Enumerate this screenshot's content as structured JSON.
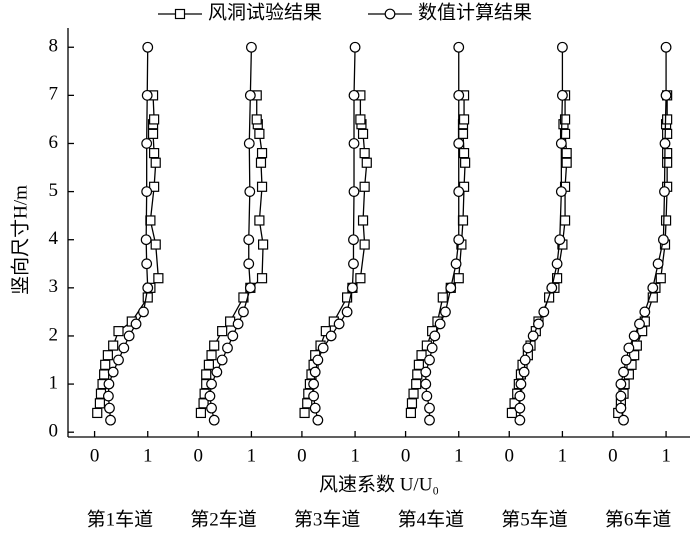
{
  "chart_data": {
    "type": "line",
    "ylabel": "竖向尺寸H/m",
    "xlabel": "风速系数 U/U₀",
    "ylim": [
      -0.1,
      8.4
    ],
    "yticks": [
      0,
      1,
      2,
      3,
      4,
      5,
      6,
      7,
      8
    ],
    "color": "#000000",
    "series": [
      {
        "name": "风洞试验结果",
        "marker": "square"
      },
      {
        "name": "数值计算结果",
        "marker": "circle"
      }
    ],
    "panels": [
      {
        "title": "第1车道",
        "xlim": [
          -0.5,
          1.45
        ],
        "xticks": [
          0,
          1
        ],
        "series": [
          {
            "x": [
              0.05,
              0.1,
              0.12,
              0.15,
              0.18,
              0.2,
              0.25,
              0.35,
              0.45,
              0.7,
              1.0,
              1.05,
              1.2,
              1.15,
              1.05,
              1.12,
              1.15,
              1.12,
              1.1,
              1.1,
              1.12,
              1.1
            ],
            "y": [
              0.4,
              0.6,
              0.8,
              1.0,
              1.2,
              1.4,
              1.6,
              1.8,
              2.1,
              2.3,
              2.8,
              3.0,
              3.2,
              3.9,
              4.4,
              5.1,
              5.6,
              5.8,
              6.2,
              6.4,
              6.5,
              7.0
            ]
          },
          {
            "x": [
              0.3,
              0.28,
              0.26,
              0.27,
              0.35,
              0.45,
              0.55,
              0.65,
              0.78,
              0.92,
              1.0,
              0.98,
              0.97,
              0.98,
              0.98,
              0.99,
              1.0
            ],
            "y": [
              0.25,
              0.5,
              0.75,
              1.0,
              1.25,
              1.5,
              1.75,
              2.0,
              2.25,
              2.5,
              3.0,
              3.5,
              4.0,
              5.0,
              6.0,
              7.0,
              8.0
            ]
          }
        ]
      },
      {
        "title": "第2车道",
        "xlim": [
          -0.5,
          1.45
        ],
        "xticks": [
          0,
          1
        ],
        "series": [
          {
            "x": [
              0.05,
              0.1,
              0.12,
              0.15,
              0.15,
              0.2,
              0.25,
              0.3,
              0.45,
              0.6,
              0.85,
              0.98,
              1.2,
              1.22,
              1.15,
              1.2,
              1.18,
              1.2,
              1.15,
              1.12,
              1.1,
              1.1
            ],
            "y": [
              0.4,
              0.6,
              0.8,
              1.0,
              1.2,
              1.4,
              1.6,
              1.8,
              2.1,
              2.3,
              2.8,
              3.0,
              3.2,
              3.9,
              4.4,
              5.1,
              5.6,
              5.8,
              6.2,
              6.4,
              6.5,
              7.0
            ]
          },
          {
            "x": [
              0.3,
              0.25,
              0.22,
              0.25,
              0.35,
              0.45,
              0.55,
              0.65,
              0.75,
              0.85,
              0.98,
              0.95,
              0.95,
              0.97,
              0.96,
              0.98,
              1.0
            ],
            "y": [
              0.25,
              0.5,
              0.75,
              1.0,
              1.25,
              1.5,
              1.75,
              2.0,
              2.25,
              2.5,
              3.0,
              3.5,
              4.0,
              5.0,
              6.0,
              7.0,
              8.0
            ]
          }
        ]
      },
      {
        "title": "第3车道",
        "xlim": [
          -0.5,
          1.45
        ],
        "xticks": [
          0,
          1
        ],
        "series": [
          {
            "x": [
              0.05,
              0.1,
              0.12,
              0.15,
              0.18,
              0.22,
              0.25,
              0.35,
              0.45,
              0.6,
              0.85,
              0.95,
              1.1,
              1.18,
              1.15,
              1.18,
              1.22,
              1.18,
              1.15,
              1.12,
              1.1,
              1.1
            ],
            "y": [
              0.4,
              0.6,
              0.8,
              1.0,
              1.2,
              1.4,
              1.6,
              1.8,
              2.1,
              2.3,
              2.8,
              3.0,
              3.2,
              3.9,
              4.4,
              5.1,
              5.6,
              5.8,
              6.2,
              6.4,
              6.5,
              7.0
            ]
          },
          {
            "x": [
              0.3,
              0.25,
              0.22,
              0.22,
              0.25,
              0.3,
              0.4,
              0.55,
              0.7,
              0.85,
              0.95,
              0.97,
              0.97,
              0.98,
              0.98,
              0.98,
              1.0
            ],
            "y": [
              0.25,
              0.5,
              0.75,
              1.0,
              1.25,
              1.5,
              1.75,
              2.0,
              2.25,
              2.5,
              3.0,
              3.5,
              4.0,
              5.0,
              6.0,
              7.0,
              8.0
            ]
          }
        ]
      },
      {
        "title": "第4车道",
        "xlim": [
          -0.5,
          1.45
        ],
        "xticks": [
          0,
          1
        ],
        "series": [
          {
            "x": [
              0.1,
              0.12,
              0.15,
              0.2,
              0.22,
              0.25,
              0.3,
              0.4,
              0.5,
              0.6,
              0.7,
              0.85,
              1.0,
              1.05,
              1.08,
              1.1,
              1.12,
              1.1,
              1.08,
              1.08,
              1.1,
              1.1
            ],
            "y": [
              0.4,
              0.6,
              0.8,
              1.0,
              1.2,
              1.4,
              1.6,
              1.8,
              2.1,
              2.3,
              2.8,
              3.0,
              3.2,
              3.9,
              4.4,
              5.1,
              5.6,
              5.8,
              6.2,
              6.4,
              6.5,
              7.0
            ]
          },
          {
            "x": [
              0.45,
              0.45,
              0.4,
              0.38,
              0.38,
              0.45,
              0.5,
              0.55,
              0.65,
              0.75,
              0.85,
              0.95,
              1.0,
              1.0,
              1.0,
              1.0,
              1.0
            ],
            "y": [
              0.25,
              0.5,
              0.75,
              1.0,
              1.25,
              1.5,
              1.75,
              2.0,
              2.25,
              2.5,
              3.0,
              3.5,
              4.0,
              5.0,
              6.0,
              7.0,
              8.0
            ]
          }
        ]
      },
      {
        "title": "第5车道",
        "xlim": [
          -0.5,
          1.45
        ],
        "xticks": [
          0,
          1
        ],
        "series": [
          {
            "x": [
              0.05,
              0.1,
              0.15,
              0.18,
              0.22,
              0.25,
              0.35,
              0.4,
              0.5,
              0.55,
              0.75,
              0.85,
              0.9,
              1.0,
              1.05,
              1.05,
              1.08,
              1.08,
              1.05,
              1.02,
              1.05,
              1.05
            ],
            "y": [
              0.4,
              0.6,
              0.8,
              1.0,
              1.2,
              1.4,
              1.6,
              1.8,
              2.1,
              2.3,
              2.8,
              3.0,
              3.2,
              3.9,
              4.4,
              5.1,
              5.6,
              5.8,
              6.2,
              6.4,
              6.5,
              7.0
            ]
          },
          {
            "x": [
              0.2,
              0.2,
              0.2,
              0.22,
              0.28,
              0.3,
              0.35,
              0.45,
              0.55,
              0.65,
              0.8,
              0.9,
              0.95,
              0.98,
              0.98,
              1.0,
              1.0
            ],
            "y": [
              0.25,
              0.5,
              0.75,
              1.0,
              1.25,
              1.5,
              1.75,
              2.0,
              2.25,
              2.5,
              3.0,
              3.5,
              4.0,
              5.0,
              6.0,
              7.0,
              8.0
            ]
          }
        ]
      },
      {
        "title": "第6车道",
        "xlim": [
          -0.5,
          1.45
        ],
        "xticks": [
          0,
          1
        ],
        "series": [
          {
            "x": [
              0.1,
              0.15,
              0.2,
              0.22,
              0.3,
              0.35,
              0.4,
              0.45,
              0.55,
              0.6,
              0.75,
              0.8,
              0.9,
              0.98,
              1.0,
              1.02,
              1.02,
              1.02,
              1.02,
              1.0,
              1.02,
              1.02
            ],
            "y": [
              0.4,
              0.6,
              0.8,
              1.0,
              1.2,
              1.4,
              1.6,
              1.8,
              2.1,
              2.3,
              2.8,
              3.0,
              3.2,
              3.9,
              4.4,
              5.1,
              5.6,
              5.8,
              6.2,
              6.4,
              6.5,
              7.0
            ]
          },
          {
            "x": [
              0.2,
              0.15,
              0.15,
              0.15,
              0.2,
              0.25,
              0.3,
              0.4,
              0.5,
              0.6,
              0.75,
              0.85,
              0.95,
              0.97,
              0.98,
              1.0,
              1.0
            ],
            "y": [
              0.25,
              0.5,
              0.75,
              1.0,
              1.25,
              1.5,
              1.75,
              2.0,
              2.25,
              2.5,
              3.0,
              3.5,
              4.0,
              5.0,
              6.0,
              7.0,
              8.0
            ]
          }
        ]
      }
    ]
  }
}
